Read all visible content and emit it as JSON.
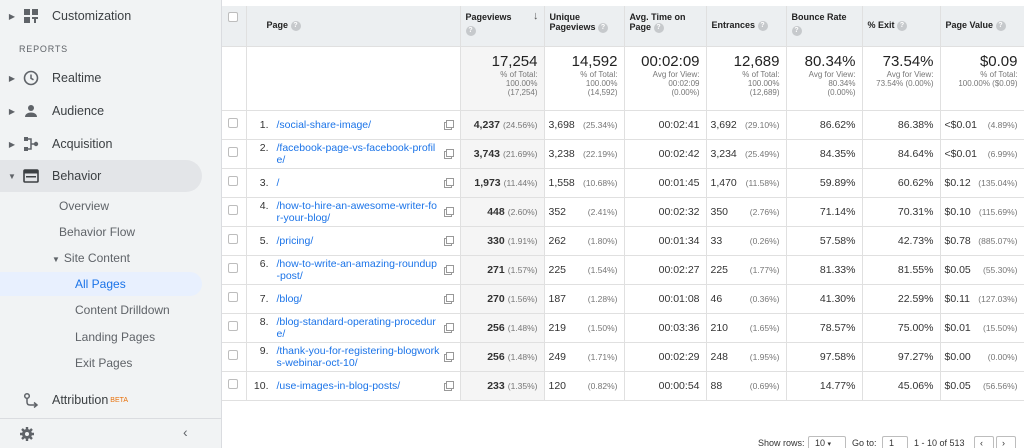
{
  "sidebar": {
    "customization": "Customization",
    "section": "REPORTS",
    "realtime": "Realtime",
    "audience": "Audience",
    "acquisition": "Acquisition",
    "behavior": "Behavior",
    "overview": "Overview",
    "behavior_flow": "Behavior Flow",
    "site_content": "Site Content",
    "all_pages": "All Pages",
    "content_drilldown": "Content Drilldown",
    "landing_pages": "Landing Pages",
    "exit_pages": "Exit Pages",
    "attribution": "Attribution",
    "beta": "BETA"
  },
  "table": {
    "headers": {
      "page": "Page",
      "pageviews": "Pageviews",
      "unique_pageviews": "Unique Pageviews",
      "avg_time": "Avg. Time on Page",
      "entrances": "Entrances",
      "bounce_rate": "Bounce Rate",
      "exit": "% Exit",
      "page_value": "Page Value"
    },
    "summary": {
      "pageviews": {
        "big": "17,254",
        "l1": "% of Total:",
        "l2": "100.00%",
        "l3": "(17,254)"
      },
      "unique": {
        "big": "14,592",
        "l1": "% of Total:",
        "l2": "100.00%",
        "l3": "(14,592)"
      },
      "avgtime": {
        "big": "00:02:09",
        "l1": "Avg for View:",
        "l2": "00:02:09",
        "l3": "(0.00%)"
      },
      "entrances": {
        "big": "12,689",
        "l1": "% of Total:",
        "l2": "100.00%",
        "l3": "(12,689)"
      },
      "bounce": {
        "big": "80.34%",
        "l1": "Avg for View:",
        "l2": "80.34%",
        "l3": "(0.00%)"
      },
      "exit": {
        "big": "73.54%",
        "l1": "Avg for View:",
        "l2": "73.54% (0.00%)",
        "l3": ""
      },
      "value": {
        "big": "$0.09",
        "l1": "% of Total:",
        "l2": "100.00% ($0.09)",
        "l3": ""
      }
    },
    "rows": [
      {
        "idx": "1.",
        "page": "/social-share-image/",
        "pv": "4,237",
        "pvp": "(24.56%)",
        "upv": "3,698",
        "upvp": "(25.34%)",
        "time": "00:02:41",
        "ent": "3,692",
        "entp": "(29.10%)",
        "bounce": "86.62%",
        "exit": "86.38%",
        "val": "<$0.01",
        "valp": "(4.89%)"
      },
      {
        "idx": "2.",
        "page": "/facebook-page-vs-facebook-profile/",
        "pv": "3,743",
        "pvp": "(21.69%)",
        "upv": "3,238",
        "upvp": "(22.19%)",
        "time": "00:02:42",
        "ent": "3,234",
        "entp": "(25.49%)",
        "bounce": "84.35%",
        "exit": "84.64%",
        "val": "<$0.01",
        "valp": "(6.99%)"
      },
      {
        "idx": "3.",
        "page": "/",
        "pv": "1,973",
        "pvp": "(11.44%)",
        "upv": "1,558",
        "upvp": "(10.68%)",
        "time": "00:01:45",
        "ent": "1,470",
        "entp": "(11.58%)",
        "bounce": "59.89%",
        "exit": "60.62%",
        "val": "$0.12",
        "valp": "(135.04%)"
      },
      {
        "idx": "4.",
        "page": "/how-to-hire-an-awesome-writer-for-your-blog/",
        "pv": "448",
        "pvp": "(2.60%)",
        "upv": "352",
        "upvp": "(2.41%)",
        "time": "00:02:32",
        "ent": "350",
        "entp": "(2.76%)",
        "bounce": "71.14%",
        "exit": "70.31%",
        "val": "$0.10",
        "valp": "(115.69%)"
      },
      {
        "idx": "5.",
        "page": "/pricing/",
        "pv": "330",
        "pvp": "(1.91%)",
        "upv": "262",
        "upvp": "(1.80%)",
        "time": "00:01:34",
        "ent": "33",
        "entp": "(0.26%)",
        "bounce": "57.58%",
        "exit": "42.73%",
        "val": "$0.78",
        "valp": "(885.07%)"
      },
      {
        "idx": "6.",
        "page": "/how-to-write-an-amazing-roundup-post/",
        "pv": "271",
        "pvp": "(1.57%)",
        "upv": "225",
        "upvp": "(1.54%)",
        "time": "00:02:27",
        "ent": "225",
        "entp": "(1.77%)",
        "bounce": "81.33%",
        "exit": "81.55%",
        "val": "$0.05",
        "valp": "(55.30%)"
      },
      {
        "idx": "7.",
        "page": "/blog/",
        "pv": "270",
        "pvp": "(1.56%)",
        "upv": "187",
        "upvp": "(1.28%)",
        "time": "00:01:08",
        "ent": "46",
        "entp": "(0.36%)",
        "bounce": "41.30%",
        "exit": "22.59%",
        "val": "$0.11",
        "valp": "(127.03%)"
      },
      {
        "idx": "8.",
        "page": "/blog-standard-operating-procedure/",
        "pv": "256",
        "pvp": "(1.48%)",
        "upv": "219",
        "upvp": "(1.50%)",
        "time": "00:03:36",
        "ent": "210",
        "entp": "(1.65%)",
        "bounce": "78.57%",
        "exit": "75.00%",
        "val": "$0.01",
        "valp": "(15.50%)"
      },
      {
        "idx": "9.",
        "page": "/thank-you-for-registering-blogworks-webinar-oct-10/",
        "pv": "256",
        "pvp": "(1.48%)",
        "upv": "249",
        "upvp": "(1.71%)",
        "time": "00:02:29",
        "ent": "248",
        "entp": "(1.95%)",
        "bounce": "97.58%",
        "exit": "97.27%",
        "val": "$0.00",
        "valp": "(0.00%)"
      },
      {
        "idx": "10.",
        "page": "/use-images-in-blog-posts/",
        "pv": "233",
        "pvp": "(1.35%)",
        "upv": "120",
        "upvp": "(0.82%)",
        "time": "00:00:54",
        "ent": "88",
        "entp": "(0.69%)",
        "bounce": "14.77%",
        "exit": "45.06%",
        "val": "$0.05",
        "valp": "(56.56%)"
      }
    ]
  },
  "footer": {
    "show_rows": "Show rows:",
    "rows_value": "10",
    "goto": "Go to:",
    "goto_value": "1",
    "range": "1 - 10 of 513"
  }
}
